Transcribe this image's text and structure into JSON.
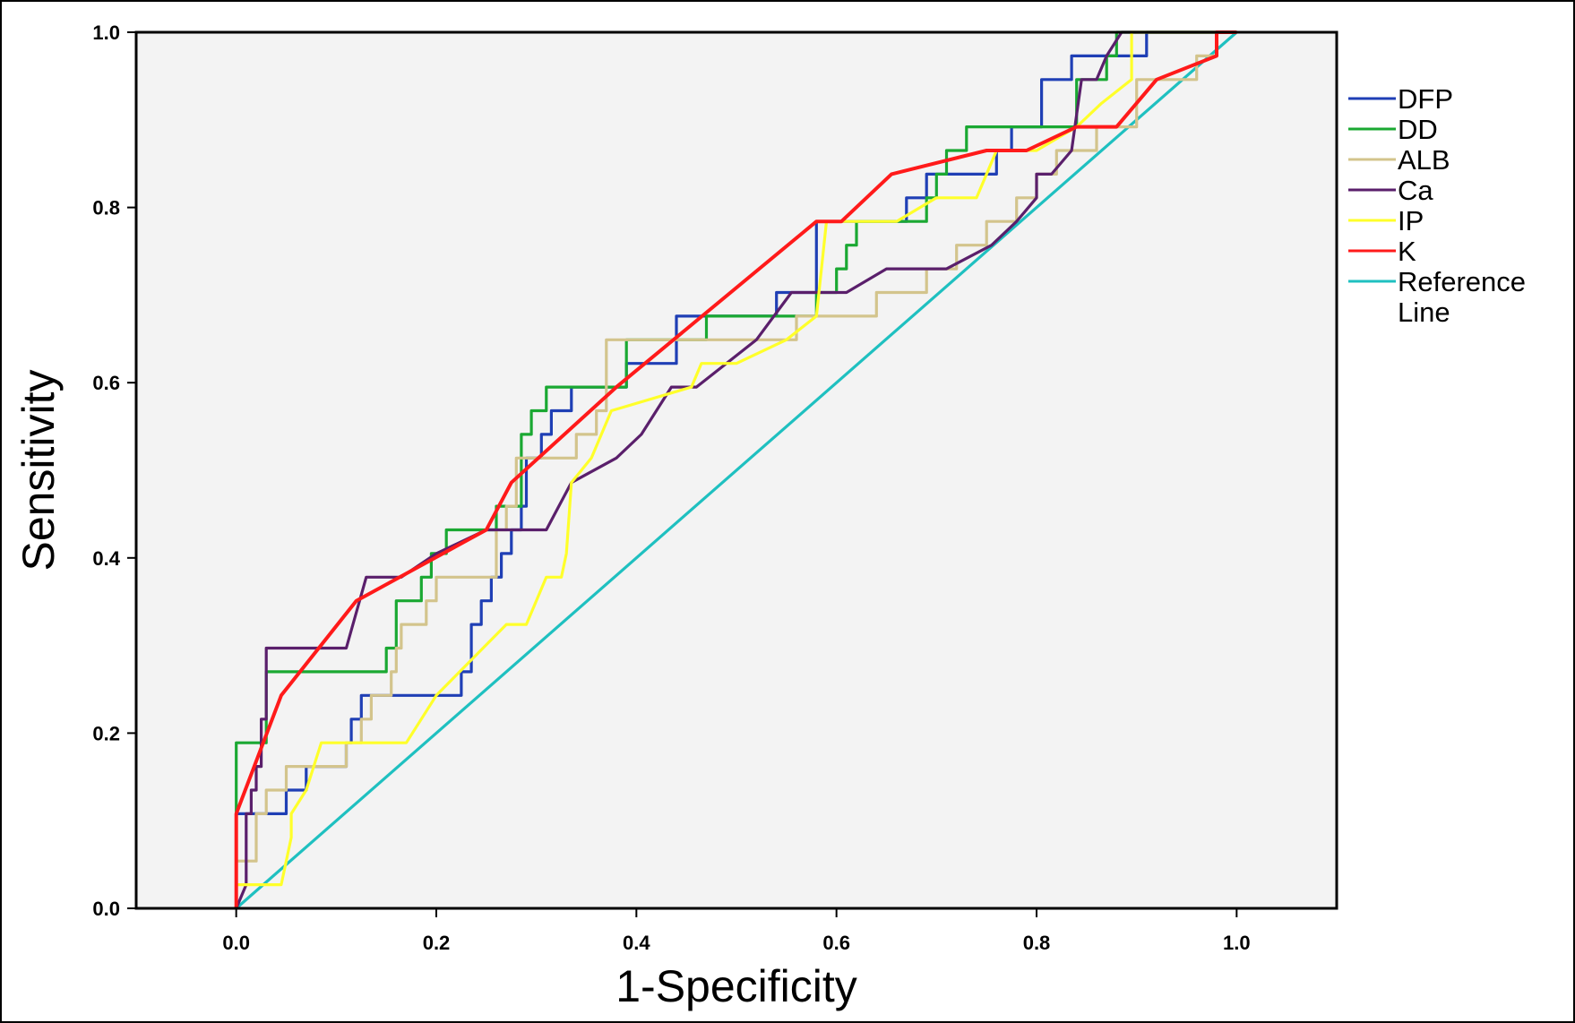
{
  "chart_data": {
    "type": "line",
    "title": "",
    "xlabel": "1-Specificity",
    "ylabel": "Sensitivity",
    "xlim": [
      -0.1,
      1.1
    ],
    "ylim": [
      0,
      1.0
    ],
    "xticks": [
      "0.0",
      "0.2",
      "0.4",
      "0.6",
      "0.8",
      "1.0"
    ],
    "yticks": [
      "0.0",
      "0.2",
      "0.4",
      "0.6",
      "0.8",
      "1.0"
    ],
    "grid": false,
    "legend_position": "right",
    "plot_background": "#f3f3f3",
    "series": [
      {
        "name": "DFP",
        "color": "#1f3fb5",
        "points": [
          [
            0,
            0
          ],
          [
            0,
            0.108
          ],
          [
            0.02,
            0.108
          ],
          [
            0.05,
            0.108
          ],
          [
            0.05,
            0.135
          ],
          [
            0.07,
            0.135
          ],
          [
            0.07,
            0.162
          ],
          [
            0.11,
            0.162
          ],
          [
            0.11,
            0.189
          ],
          [
            0.115,
            0.189
          ],
          [
            0.115,
            0.216
          ],
          [
            0.125,
            0.216
          ],
          [
            0.125,
            0.243
          ],
          [
            0.225,
            0.243
          ],
          [
            0.225,
            0.27
          ],
          [
            0.235,
            0.27
          ],
          [
            0.235,
            0.324
          ],
          [
            0.245,
            0.324
          ],
          [
            0.245,
            0.351
          ],
          [
            0.255,
            0.351
          ],
          [
            0.255,
            0.378
          ],
          [
            0.265,
            0.378
          ],
          [
            0.265,
            0.405
          ],
          [
            0.275,
            0.405
          ],
          [
            0.275,
            0.432
          ],
          [
            0.285,
            0.432
          ],
          [
            0.285,
            0.459
          ],
          [
            0.29,
            0.459
          ],
          [
            0.29,
            0.514
          ],
          [
            0.305,
            0.514
          ],
          [
            0.305,
            0.541
          ],
          [
            0.315,
            0.541
          ],
          [
            0.315,
            0.568
          ],
          [
            0.335,
            0.568
          ],
          [
            0.335,
            0.595
          ],
          [
            0.39,
            0.595
          ],
          [
            0.39,
            0.622
          ],
          [
            0.44,
            0.622
          ],
          [
            0.44,
            0.676
          ],
          [
            0.54,
            0.676
          ],
          [
            0.54,
            0.703
          ],
          [
            0.58,
            0.703
          ],
          [
            0.58,
            0.784
          ],
          [
            0.67,
            0.784
          ],
          [
            0.67,
            0.811
          ],
          [
            0.69,
            0.811
          ],
          [
            0.69,
            0.838
          ],
          [
            0.76,
            0.838
          ],
          [
            0.76,
            0.865
          ],
          [
            0.775,
            0.865
          ],
          [
            0.775,
            0.892
          ],
          [
            0.805,
            0.892
          ],
          [
            0.805,
            0.946
          ],
          [
            0.835,
            0.946
          ],
          [
            0.835,
            0.973
          ],
          [
            0.91,
            0.973
          ],
          [
            0.91,
            1.0
          ],
          [
            1.0,
            1.0
          ]
        ]
      },
      {
        "name": "DD",
        "color": "#1aa832",
        "points": [
          [
            0,
            0
          ],
          [
            0,
            0.189
          ],
          [
            0.03,
            0.189
          ],
          [
            0.03,
            0.27
          ],
          [
            0.15,
            0.27
          ],
          [
            0.15,
            0.297
          ],
          [
            0.16,
            0.297
          ],
          [
            0.16,
            0.351
          ],
          [
            0.185,
            0.351
          ],
          [
            0.185,
            0.378
          ],
          [
            0.195,
            0.378
          ],
          [
            0.195,
            0.405
          ],
          [
            0.21,
            0.405
          ],
          [
            0.21,
            0.432
          ],
          [
            0.26,
            0.432
          ],
          [
            0.26,
            0.459
          ],
          [
            0.285,
            0.459
          ],
          [
            0.285,
            0.541
          ],
          [
            0.295,
            0.541
          ],
          [
            0.295,
            0.568
          ],
          [
            0.31,
            0.568
          ],
          [
            0.31,
            0.595
          ],
          [
            0.39,
            0.595
          ],
          [
            0.39,
            0.649
          ],
          [
            0.47,
            0.649
          ],
          [
            0.47,
            0.676
          ],
          [
            0.58,
            0.676
          ],
          [
            0.58,
            0.703
          ],
          [
            0.6,
            0.703
          ],
          [
            0.6,
            0.73
          ],
          [
            0.61,
            0.73
          ],
          [
            0.61,
            0.757
          ],
          [
            0.62,
            0.757
          ],
          [
            0.62,
            0.784
          ],
          [
            0.69,
            0.784
          ],
          [
            0.69,
            0.811
          ],
          [
            0.7,
            0.811
          ],
          [
            0.7,
            0.838
          ],
          [
            0.71,
            0.838
          ],
          [
            0.71,
            0.865
          ],
          [
            0.73,
            0.865
          ],
          [
            0.73,
            0.892
          ],
          [
            0.84,
            0.892
          ],
          [
            0.84,
            0.946
          ],
          [
            0.87,
            0.946
          ],
          [
            0.87,
            0.973
          ],
          [
            0.88,
            0.973
          ],
          [
            0.88,
            1.0
          ],
          [
            1.0,
            1.0
          ]
        ]
      },
      {
        "name": "ALB",
        "color": "#d3c48c",
        "points": [
          [
            0,
            0
          ],
          [
            0,
            0.054
          ],
          [
            0.02,
            0.054
          ],
          [
            0.02,
            0.108
          ],
          [
            0.03,
            0.108
          ],
          [
            0.03,
            0.135
          ],
          [
            0.05,
            0.135
          ],
          [
            0.05,
            0.162
          ],
          [
            0.11,
            0.162
          ],
          [
            0.11,
            0.189
          ],
          [
            0.125,
            0.189
          ],
          [
            0.125,
            0.216
          ],
          [
            0.135,
            0.216
          ],
          [
            0.135,
            0.243
          ],
          [
            0.155,
            0.243
          ],
          [
            0.155,
            0.27
          ],
          [
            0.16,
            0.27
          ],
          [
            0.16,
            0.297
          ],
          [
            0.165,
            0.297
          ],
          [
            0.165,
            0.324
          ],
          [
            0.19,
            0.324
          ],
          [
            0.19,
            0.351
          ],
          [
            0.2,
            0.351
          ],
          [
            0.2,
            0.378
          ],
          [
            0.26,
            0.378
          ],
          [
            0.26,
            0.432
          ],
          [
            0.27,
            0.432
          ],
          [
            0.27,
            0.459
          ],
          [
            0.28,
            0.459
          ],
          [
            0.28,
            0.514
          ],
          [
            0.34,
            0.514
          ],
          [
            0.34,
            0.541
          ],
          [
            0.36,
            0.541
          ],
          [
            0.36,
            0.568
          ],
          [
            0.37,
            0.568
          ],
          [
            0.37,
            0.649
          ],
          [
            0.56,
            0.649
          ],
          [
            0.56,
            0.676
          ],
          [
            0.64,
            0.676
          ],
          [
            0.64,
            0.703
          ],
          [
            0.69,
            0.703
          ],
          [
            0.69,
            0.73
          ],
          [
            0.72,
            0.73
          ],
          [
            0.72,
            0.757
          ],
          [
            0.75,
            0.757
          ],
          [
            0.75,
            0.784
          ],
          [
            0.78,
            0.784
          ],
          [
            0.78,
            0.811
          ],
          [
            0.8,
            0.811
          ],
          [
            0.8,
            0.838
          ],
          [
            0.82,
            0.838
          ],
          [
            0.82,
            0.865
          ],
          [
            0.86,
            0.865
          ],
          [
            0.86,
            0.892
          ],
          [
            0.9,
            0.892
          ],
          [
            0.9,
            0.946
          ],
          [
            0.96,
            0.946
          ],
          [
            0.96,
            0.973
          ],
          [
            0.98,
            0.973
          ],
          [
            0.98,
            1.0
          ],
          [
            1.0,
            1.0
          ]
        ]
      },
      {
        "name": "Ca",
        "color": "#5a1f6b",
        "points": [
          [
            0,
            0
          ],
          [
            0.01,
            0.027
          ],
          [
            0.01,
            0.108
          ],
          [
            0.015,
            0.108
          ],
          [
            0.015,
            0.135
          ],
          [
            0.02,
            0.135
          ],
          [
            0.02,
            0.162
          ],
          [
            0.025,
            0.162
          ],
          [
            0.025,
            0.216
          ],
          [
            0.03,
            0.216
          ],
          [
            0.03,
            0.297
          ],
          [
            0.11,
            0.297
          ],
          [
            0.13,
            0.378
          ],
          [
            0.165,
            0.378
          ],
          [
            0.2,
            0.405
          ],
          [
            0.25,
            0.432
          ],
          [
            0.31,
            0.432
          ],
          [
            0.335,
            0.486
          ],
          [
            0.38,
            0.514
          ],
          [
            0.405,
            0.541
          ],
          [
            0.435,
            0.595
          ],
          [
            0.46,
            0.595
          ],
          [
            0.52,
            0.649
          ],
          [
            0.555,
            0.703
          ],
          [
            0.61,
            0.703
          ],
          [
            0.65,
            0.73
          ],
          [
            0.71,
            0.73
          ],
          [
            0.755,
            0.757
          ],
          [
            0.78,
            0.784
          ],
          [
            0.8,
            0.811
          ],
          [
            0.8,
            0.838
          ],
          [
            0.815,
            0.838
          ],
          [
            0.835,
            0.865
          ],
          [
            0.845,
            0.946
          ],
          [
            0.86,
            0.946
          ],
          [
            0.87,
            0.973
          ],
          [
            0.885,
            1.0
          ],
          [
            1.0,
            1.0
          ]
        ]
      },
      {
        "name": "IP",
        "color": "#ffff2a",
        "points": [
          [
            0,
            0
          ],
          [
            0,
            0.027
          ],
          [
            0.045,
            0.027
          ],
          [
            0.055,
            0.081
          ],
          [
            0.055,
            0.108
          ],
          [
            0.07,
            0.135
          ],
          [
            0.085,
            0.189
          ],
          [
            0.17,
            0.189
          ],
          [
            0.2,
            0.243
          ],
          [
            0.27,
            0.324
          ],
          [
            0.29,
            0.324
          ],
          [
            0.31,
            0.378
          ],
          [
            0.325,
            0.378
          ],
          [
            0.33,
            0.405
          ],
          [
            0.335,
            0.486
          ],
          [
            0.355,
            0.514
          ],
          [
            0.375,
            0.568
          ],
          [
            0.455,
            0.595
          ],
          [
            0.465,
            0.622
          ],
          [
            0.5,
            0.622
          ],
          [
            0.55,
            0.649
          ],
          [
            0.58,
            0.676
          ],
          [
            0.59,
            0.784
          ],
          [
            0.62,
            0.784
          ],
          [
            0.66,
            0.784
          ],
          [
            0.7,
            0.811
          ],
          [
            0.74,
            0.811
          ],
          [
            0.75,
            0.838
          ],
          [
            0.76,
            0.865
          ],
          [
            0.8,
            0.865
          ],
          [
            0.84,
            0.892
          ],
          [
            0.865,
            0.919
          ],
          [
            0.895,
            0.946
          ],
          [
            0.895,
            1.0
          ],
          [
            0.97,
            1.0
          ],
          [
            0.975,
            1.0
          ],
          [
            1.0,
            1.0
          ]
        ]
      },
      {
        "name": "K",
        "color": "#ff1a1a",
        "points": [
          [
            0,
            0
          ],
          [
            0,
            0.108
          ],
          [
            0.045,
            0.243
          ],
          [
            0.12,
            0.351
          ],
          [
            0.25,
            0.432
          ],
          [
            0.275,
            0.486
          ],
          [
            0.38,
            0.595
          ],
          [
            0.58,
            0.784
          ],
          [
            0.605,
            0.784
          ],
          [
            0.655,
            0.838
          ],
          [
            0.75,
            0.865
          ],
          [
            0.79,
            0.865
          ],
          [
            0.84,
            0.892
          ],
          [
            0.88,
            0.892
          ],
          [
            0.92,
            0.946
          ],
          [
            0.98,
            0.973
          ],
          [
            0.98,
            1.0
          ],
          [
            1.0,
            1.0
          ]
        ]
      },
      {
        "name": "Reference Line",
        "color": "#1fc0c0",
        "points": [
          [
            0,
            0
          ],
          [
            1.0,
            1.0
          ]
        ]
      }
    ]
  }
}
